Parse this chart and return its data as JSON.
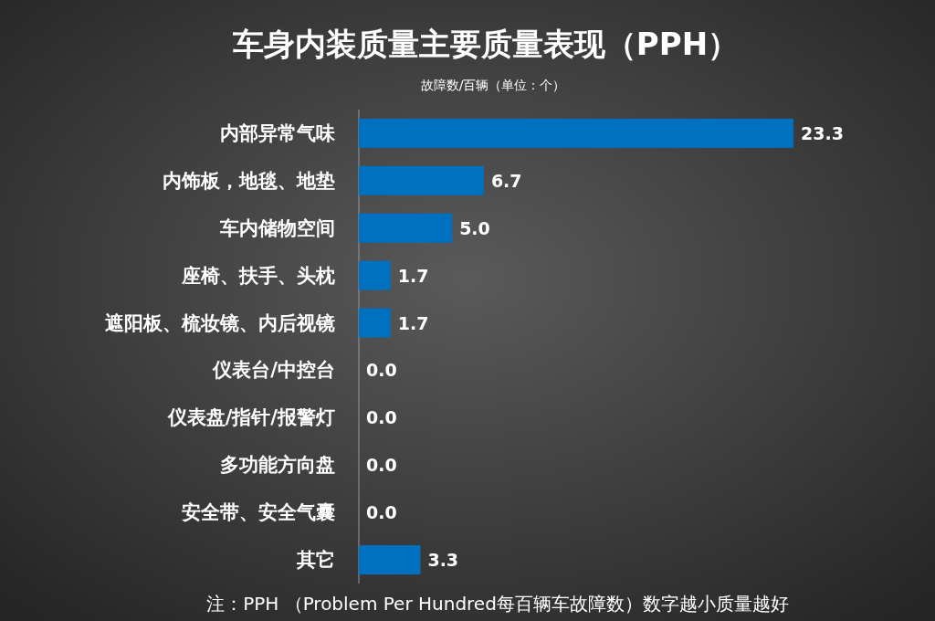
{
  "chart_data": {
    "type": "bar",
    "orientation": "horizontal",
    "title": "车身内装质量主要质量表现（PPH）",
    "subtitle": "故障数/百辆（单位：个）",
    "categories": [
      "内部异常气味",
      "内饰板，地毯、地垫",
      "车内储物空间",
      "座椅、扶手、头枕",
      "遮阳板、梳妆镜、内后视镜",
      "仪表台/中控台",
      "仪表盘/指针/报警灯",
      "多功能方向盘",
      "安全带、安全气囊",
      "其它"
    ],
    "values": [
      23.3,
      6.7,
      5.0,
      1.7,
      1.7,
      0.0,
      0.0,
      0.0,
      0.0,
      3.3
    ],
    "value_labels": [
      "23.3",
      "6.7",
      "5.0",
      "1.7",
      "1.7",
      "0.0",
      "0.0",
      "0.0",
      "0.0",
      "3.3"
    ],
    "color": "#0070c0",
    "annotations": [
      "注：PPH （Problem Per Hundred每百辆车故障数）数字越小质量越好"
    ]
  }
}
